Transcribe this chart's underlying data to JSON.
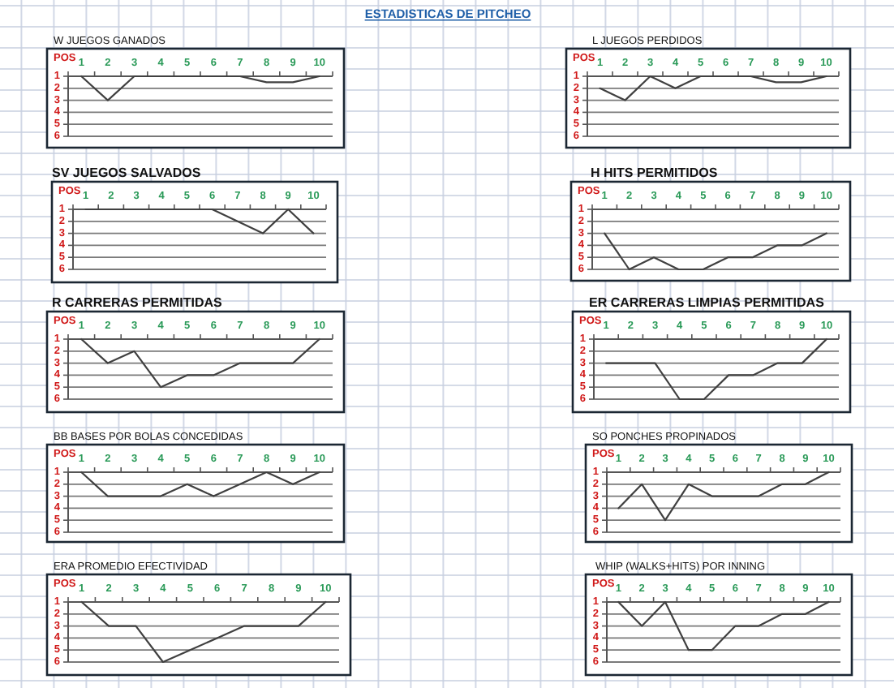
{
  "chart_data": [
    {
      "type": "other",
      "title": "ESTADISTICAS DE PITCHEO"
    },
    {
      "type": "line",
      "title": "W JUEGOS GANADOS",
      "ylabel": "POS",
      "categories": [
        "1",
        "2",
        "3",
        "4",
        "5",
        "6",
        "7",
        "8",
        "9",
        "10"
      ],
      "values": [
        1,
        3,
        1,
        1,
        1,
        1,
        1,
        1.5,
        1.5,
        1
      ],
      "color": "#404040",
      "ylim": [
        6,
        1
      ],
      "yticks": [
        1,
        2,
        3,
        4,
        5,
        6
      ],
      "grid": "y"
    },
    {
      "type": "line",
      "title": "L JUEGOS PERDIDOS",
      "ylabel": "POS",
      "categories": [
        "1",
        "2",
        "3",
        "4",
        "5",
        "6",
        "7",
        "8",
        "9",
        "10"
      ],
      "values": [
        2,
        3,
        1,
        2,
        1,
        1,
        1,
        1.5,
        1.5,
        1
      ],
      "color": "#404040",
      "ylim": [
        6,
        1
      ],
      "yticks": [
        1,
        2,
        3,
        4,
        5,
        6
      ],
      "grid": "y"
    },
    {
      "type": "line",
      "title": "SV JUEGOS SALVADOS",
      "ylabel": "POS",
      "categories": [
        "1",
        "2",
        "3",
        "4",
        "5",
        "6",
        "7",
        "8",
        "9",
        "10"
      ],
      "values": [
        1,
        1,
        1,
        1,
        1,
        1,
        2,
        3,
        1,
        3
      ],
      "color": "#404040",
      "ylim": [
        6,
        1
      ],
      "yticks": [
        1,
        2,
        3,
        4,
        5,
        6
      ],
      "grid": "y"
    },
    {
      "type": "line",
      "title": "H HITS PERMITIDOS",
      "ylabel": "POS",
      "categories": [
        "1",
        "2",
        "3",
        "4",
        "5",
        "6",
        "7",
        "8",
        "9",
        "10"
      ],
      "values": [
        3,
        6,
        5,
        6,
        6,
        5,
        5,
        4,
        4,
        3
      ],
      "color": "#404040",
      "ylim": [
        6,
        1
      ],
      "yticks": [
        1,
        2,
        3,
        4,
        5,
        6
      ],
      "grid": "y"
    },
    {
      "type": "line",
      "title": "R CARRERAS PERMITIDAS",
      "ylabel": "POS",
      "categories": [
        "1",
        "2",
        "3",
        "4",
        "5",
        "6",
        "7",
        "8",
        "9",
        "10"
      ],
      "values": [
        1,
        3,
        2,
        5,
        4,
        4,
        3,
        3,
        3,
        1
      ],
      "color": "#404040",
      "ylim": [
        6,
        1
      ],
      "yticks": [
        1,
        2,
        3,
        4,
        5,
        6
      ],
      "grid": "y"
    },
    {
      "type": "line",
      "title": "ER CARRERAS LIMPIAS PERMITIDAS",
      "ylabel": "POS",
      "categories": [
        "1",
        "2",
        "3",
        "4",
        "5",
        "6",
        "7",
        "8",
        "9",
        "10"
      ],
      "values": [
        3,
        3,
        3,
        6,
        6,
        4,
        4,
        3,
        3,
        1
      ],
      "color": "#404040",
      "ylim": [
        6,
        1
      ],
      "yticks": [
        1,
        2,
        3,
        4,
        5,
        6
      ],
      "grid": "y"
    },
    {
      "type": "line",
      "title": "BB BASES POR BOLAS CONCEDIDAS",
      "ylabel": "POS",
      "categories": [
        "1",
        "2",
        "3",
        "4",
        "5",
        "6",
        "7",
        "8",
        "9",
        "10"
      ],
      "values": [
        1,
        3,
        3,
        3,
        2,
        3,
        2,
        1,
        2,
        1
      ],
      "color": "#404040",
      "ylim": [
        6,
        1
      ],
      "yticks": [
        1,
        2,
        3,
        4,
        5,
        6
      ],
      "grid": "y"
    },
    {
      "type": "line",
      "title": "SO PONCHES PROPINADOS",
      "ylabel": "POS",
      "categories": [
        "1",
        "2",
        "3",
        "4",
        "5",
        "6",
        "7",
        "8",
        "9",
        "10"
      ],
      "values": [
        4,
        2,
        5,
        2,
        3,
        3,
        3,
        2,
        2,
        1
      ],
      "color": "#404040",
      "ylim": [
        6,
        1
      ],
      "yticks": [
        1,
        2,
        3,
        4,
        5,
        6
      ],
      "grid": "y"
    },
    {
      "type": "line",
      "title": "ERA PROMEDIO EFECTIVIDAD",
      "ylabel": "POS",
      "categories": [
        "1",
        "2",
        "3",
        "4",
        "5",
        "6",
        "7",
        "8",
        "9",
        "10"
      ],
      "values": [
        1,
        3,
        3,
        6,
        5,
        4,
        3,
        3,
        3,
        1
      ],
      "color": "#404040",
      "ylim": [
        6,
        1
      ],
      "yticks": [
        1,
        2,
        3,
        4,
        5,
        6
      ],
      "grid": "y"
    },
    {
      "type": "line",
      "title": "WHIP (WALKS+HITS) POR INNING",
      "ylabel": "POS",
      "categories": [
        "1",
        "2",
        "3",
        "4",
        "5",
        "6",
        "7",
        "8",
        "9",
        "10"
      ],
      "values": [
        1,
        3,
        1,
        5,
        5,
        3,
        3,
        2,
        2,
        1
      ],
      "color": "#404040",
      "ylim": [
        6,
        1
      ],
      "yticks": [
        1,
        2,
        3,
        4,
        5,
        6
      ],
      "grid": "y"
    }
  ]
}
